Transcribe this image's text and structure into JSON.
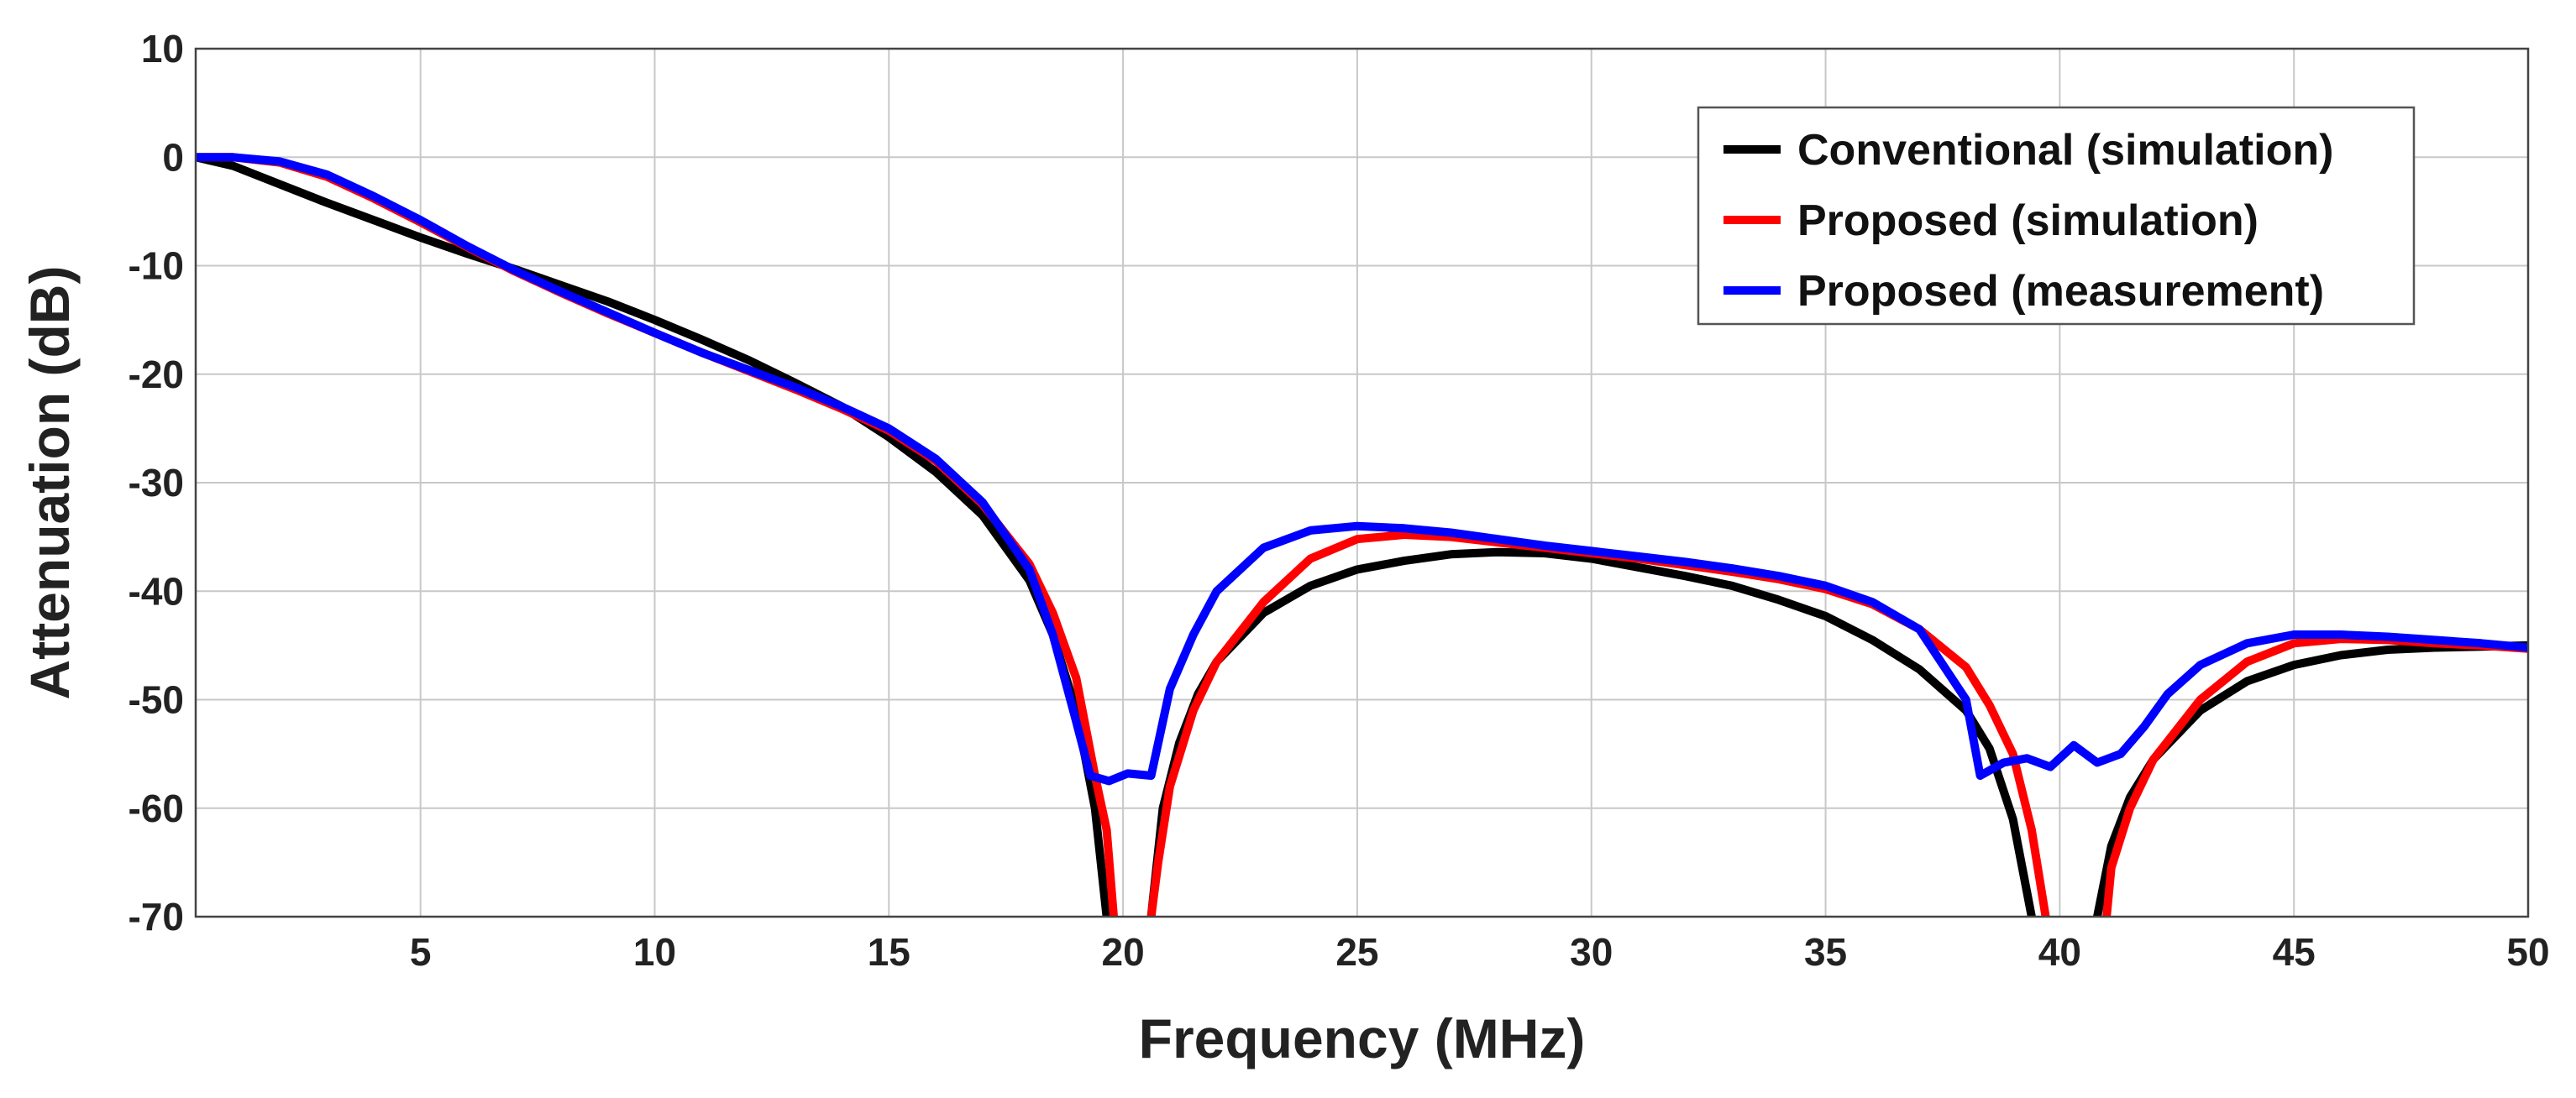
{
  "chart_data": {
    "type": "line",
    "title": "",
    "xlabel": "Frequency (MHz)",
    "ylabel": "Attenuation (dB)",
    "xlim": [
      0.2,
      50
    ],
    "ylim": [
      -70,
      10
    ],
    "xticks": [
      5,
      10,
      15,
      20,
      25,
      30,
      35,
      40,
      45,
      50
    ],
    "yticks": [
      10,
      0,
      -10,
      -20,
      -30,
      -40,
      -50,
      -60,
      -70
    ],
    "grid": true,
    "legend_position": "top-right",
    "series": [
      {
        "name": "Conventional (simulation)",
        "color": "#000000",
        "segments": [
          [
            [
              0.2,
              0
            ],
            [
              1,
              -0.8
            ],
            [
              2,
              -2.5
            ],
            [
              3,
              -4.2
            ],
            [
              4,
              -5.8
            ],
            [
              5,
              -7.4
            ],
            [
              6,
              -8.9
            ],
            [
              7,
              -10.3
            ],
            [
              8,
              -11.8
            ],
            [
              9,
              -13.3
            ],
            [
              10,
              -15
            ],
            [
              11,
              -16.8
            ],
            [
              12,
              -18.7
            ],
            [
              13,
              -20.8
            ],
            [
              14,
              -23
            ],
            [
              15,
              -25.8
            ],
            [
              16,
              -29
            ],
            [
              17,
              -33
            ],
            [
              18,
              -39
            ],
            [
              18.5,
              -44
            ],
            [
              19,
              -51
            ],
            [
              19.4,
              -60
            ],
            [
              19.65,
              -70
            ]
          ],
          [
            [
              20.6,
              -70
            ],
            [
              20.85,
              -60
            ],
            [
              21.2,
              -54
            ],
            [
              21.6,
              -49.5
            ],
            [
              22,
              -46.5
            ],
            [
              23,
              -42
            ],
            [
              24,
              -39.5
            ],
            [
              25,
              -38
            ],
            [
              26,
              -37.2
            ],
            [
              27,
              -36.6
            ],
            [
              28,
              -36.4
            ],
            [
              29,
              -36.5
            ],
            [
              30,
              -37
            ],
            [
              31,
              -37.8
            ],
            [
              32,
              -38.6
            ],
            [
              33,
              -39.5
            ],
            [
              34,
              -40.8
            ],
            [
              35,
              -42.3
            ],
            [
              36,
              -44.5
            ],
            [
              37,
              -47.2
            ],
            [
              38,
              -51
            ],
            [
              38.5,
              -54.5
            ],
            [
              39,
              -61
            ],
            [
              39.4,
              -70
            ]
          ],
          [
            [
              40.8,
              -70
            ],
            [
              41.1,
              -63.5
            ],
            [
              41.5,
              -59
            ],
            [
              42,
              -55.5
            ],
            [
              43,
              -51
            ],
            [
              44,
              -48.3
            ],
            [
              45,
              -46.8
            ],
            [
              46,
              -45.9
            ],
            [
              47,
              -45.4
            ],
            [
              48,
              -45.2
            ],
            [
              49,
              -45.1
            ],
            [
              50,
              -45
            ]
          ]
        ]
      },
      {
        "name": "Proposed (simulation)",
        "color": "#ff0000",
        "segments": [
          [
            [
              0.2,
              0
            ],
            [
              1,
              0
            ],
            [
              2,
              -0.5
            ],
            [
              3,
              -1.8
            ],
            [
              4,
              -3.8
            ],
            [
              5,
              -6
            ],
            [
              6,
              -8.3
            ],
            [
              7,
              -10.5
            ],
            [
              8,
              -12.5
            ],
            [
              9,
              -14.4
            ],
            [
              10,
              -16.2
            ],
            [
              11,
              -18
            ],
            [
              12,
              -19.7
            ],
            [
              13,
              -21.4
            ],
            [
              14,
              -23.2
            ],
            [
              15,
              -25.2
            ],
            [
              16,
              -28
            ],
            [
              17,
              -32
            ],
            [
              18,
              -37.5
            ],
            [
              18.5,
              -42
            ],
            [
              19,
              -48
            ],
            [
              19.4,
              -57
            ],
            [
              19.65,
              -62
            ],
            [
              19.8,
              -70
            ]
          ],
          [
            [
              20.6,
              -70
            ],
            [
              20.75,
              -65
            ],
            [
              21,
              -58
            ],
            [
              21.5,
              -51
            ],
            [
              22,
              -46.5
            ],
            [
              23,
              -41
            ],
            [
              24,
              -37
            ],
            [
              25,
              -35.2
            ],
            [
              26,
              -34.8
            ],
            [
              27,
              -35
            ],
            [
              28,
              -35.5
            ],
            [
              29,
              -36
            ],
            [
              30,
              -36.5
            ],
            [
              31,
              -37
            ],
            [
              32,
              -37.6
            ],
            [
              33,
              -38.2
            ],
            [
              34,
              -38.9
            ],
            [
              35,
              -39.8
            ],
            [
              36,
              -41.2
            ],
            [
              37,
              -43.5
            ],
            [
              38,
              -47
            ],
            [
              38.5,
              -50.5
            ],
            [
              39,
              -55
            ],
            [
              39.4,
              -62
            ],
            [
              39.7,
              -70
            ]
          ],
          [
            [
              41,
              -70
            ],
            [
              41.1,
              -65.5
            ],
            [
              41.5,
              -60
            ],
            [
              42,
              -55.5
            ],
            [
              43,
              -50
            ],
            [
              44,
              -46.5
            ],
            [
              45,
              -44.8
            ],
            [
              46,
              -44.4
            ],
            [
              47,
              -44.5
            ],
            [
              48,
              -44.8
            ],
            [
              49,
              -45
            ],
            [
              50,
              -45.3
            ]
          ]
        ]
      },
      {
        "name": "Proposed (measurement)",
        "color": "#0000ff",
        "segments": [
          [
            [
              0.2,
              0
            ],
            [
              1,
              0
            ],
            [
              2,
              -0.4
            ],
            [
              3,
              -1.6
            ],
            [
              4,
              -3.6
            ],
            [
              5,
              -5.8
            ],
            [
              6,
              -8.2
            ],
            [
              7,
              -10.4
            ],
            [
              8,
              -12.4
            ],
            [
              9,
              -14.3
            ],
            [
              10,
              -16.2
            ],
            [
              11,
              -18
            ],
            [
              12,
              -19.6
            ],
            [
              13,
              -21.2
            ],
            [
              14,
              -23
            ],
            [
              15,
              -25
            ],
            [
              16,
              -27.8
            ],
            [
              17,
              -31.8
            ],
            [
              18,
              -38
            ],
            [
              18.5,
              -44
            ],
            [
              19,
              -52
            ],
            [
              19.3,
              -57
            ],
            [
              19.7,
              -57.5
            ],
            [
              20.1,
              -56.8
            ],
            [
              20.6,
              -57
            ],
            [
              21,
              -49
            ],
            [
              21.5,
              -44
            ],
            [
              22,
              -40
            ],
            [
              23,
              -36
            ],
            [
              24,
              -34.4
            ],
            [
              25,
              -34
            ],
            [
              26,
              -34.2
            ],
            [
              27,
              -34.6
            ],
            [
              28,
              -35.2
            ],
            [
              29,
              -35.8
            ],
            [
              30,
              -36.3
            ],
            [
              31,
              -36.8
            ],
            [
              32,
              -37.3
            ],
            [
              33,
              -37.9
            ],
            [
              34,
              -38.6
            ],
            [
              35,
              -39.5
            ],
            [
              36,
              -41
            ],
            [
              37,
              -43.5
            ],
            [
              38,
              -50
            ],
            [
              38.3,
              -57
            ],
            [
              38.8,
              -55.8
            ],
            [
              39.3,
              -55.4
            ],
            [
              39.8,
              -56.2
            ],
            [
              40.3,
              -54.2
            ],
            [
              40.8,
              -55.8
            ],
            [
              41.3,
              -55
            ],
            [
              41.8,
              -52.5
            ],
            [
              42.3,
              -49.5
            ],
            [
              43,
              -46.8
            ],
            [
              44,
              -44.8
            ],
            [
              45,
              -44
            ],
            [
              46,
              -44
            ],
            [
              47,
              -44.2
            ],
            [
              48,
              -44.5
            ],
            [
              49,
              -44.8
            ],
            [
              50,
              -45.2
            ]
          ]
        ]
      }
    ]
  }
}
